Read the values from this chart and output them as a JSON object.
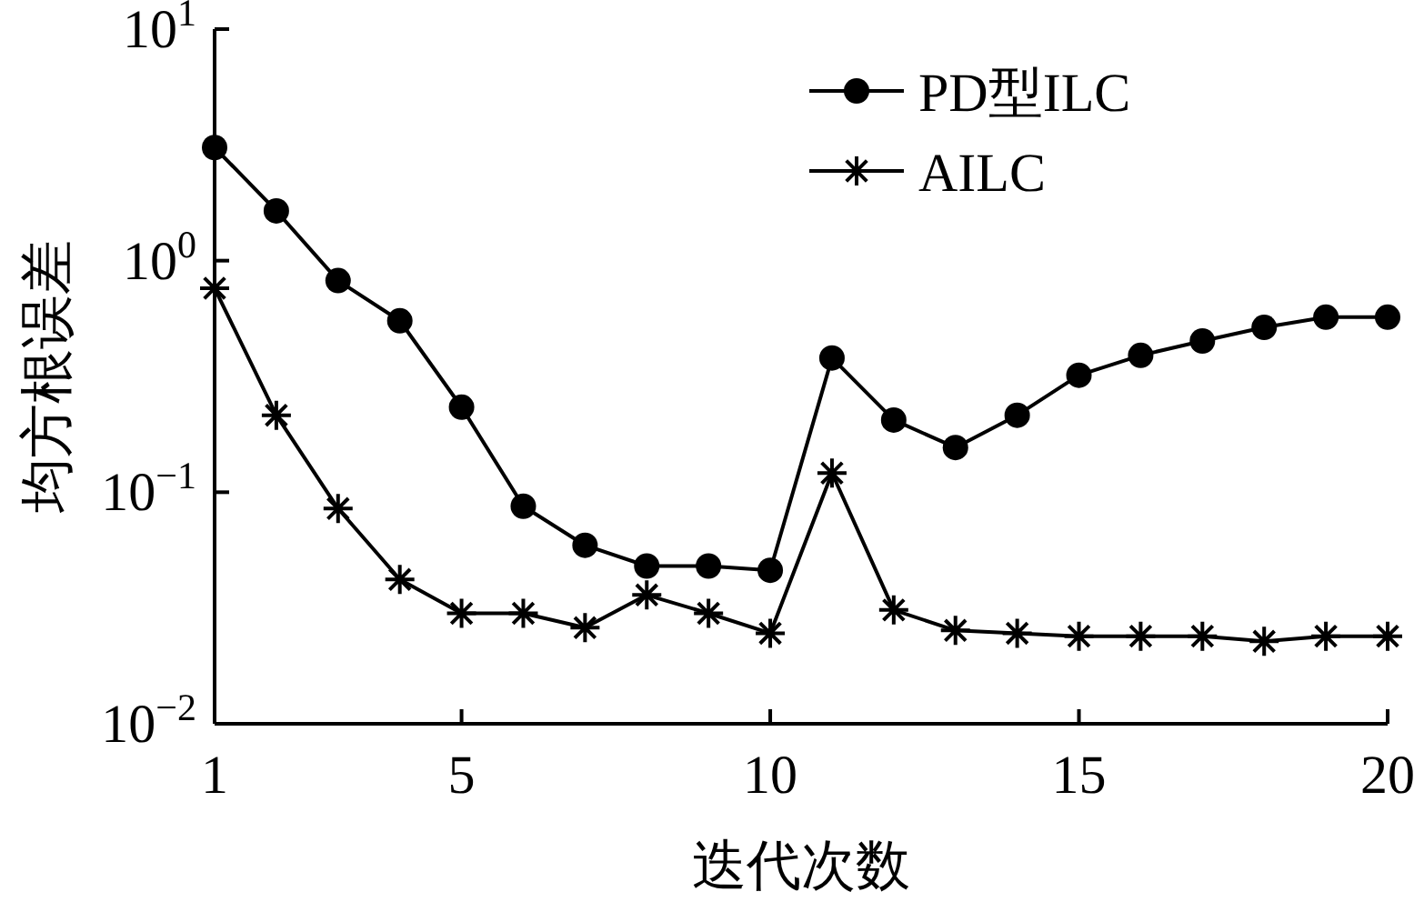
{
  "chart_data": {
    "type": "line",
    "xlabel": "迭代次数",
    "ylabel": "均方根误差",
    "log": "y",
    "legend": "top right",
    "xlim": [
      1,
      20
    ],
    "xticks": [
      1,
      5,
      10,
      15,
      20
    ],
    "ylim": [
      0.01,
      10
    ],
    "yticks": [
      {
        "value": 0.01,
        "label": "10$^{−2}$"
      },
      {
        "value": 0.1,
        "label": "10$^{−1}$"
      },
      {
        "value": 1,
        "label": "10$^{0}$"
      },
      {
        "value": 10,
        "label": "10$^{1}$"
      }
    ],
    "x": [
      1,
      2,
      3,
      4,
      5,
      6,
      7,
      8,
      9,
      10,
      11,
      12,
      13,
      14,
      15,
      16,
      17,
      18,
      19,
      20
    ],
    "series": [
      {
        "name": "PD型ILC",
        "color": "#000000",
        "marker": "circle",
        "values": [
          3.08,
          1.64,
          0.82,
          0.55,
          0.233,
          0.087,
          0.059,
          0.048,
          0.048,
          0.046,
          0.38,
          0.205,
          0.156,
          0.215,
          0.32,
          0.39,
          0.45,
          0.515,
          0.57,
          0.57
        ]
      },
      {
        "name": "AILC",
        "color": "#000000",
        "marker": "cross",
        "values": [
          0.76,
          0.215,
          0.085,
          0.042,
          0.03,
          0.03,
          0.026,
          0.036,
          0.03,
          0.0246,
          0.121,
          0.031,
          0.0253,
          0.0246,
          0.0239,
          0.0239,
          0.0239,
          0.0227,
          0.0239,
          0.0239
        ]
      }
    ]
  }
}
